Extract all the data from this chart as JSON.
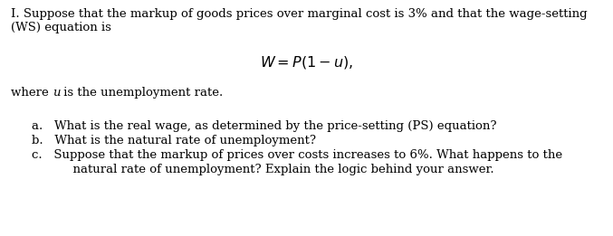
{
  "bg_color": "#ffffff",
  "text_color": "#000000",
  "figsize": [
    6.77,
    2.61
  ],
  "dpi": 100,
  "line1": "I. Suppose that the markup of goods prices over marginal cost is 3% and that the wage-setting",
  "line2": "(WS) equation is",
  "equation": "$\\mathit{W} = \\mathit{P}(1 - \\mathit{u}),$",
  "where_pre": "where ",
  "where_u": "u",
  "where_post": " is the unemployment rate.",
  "item_a": "a.   What is the real wage, as determined by the price-setting (PS) equation?",
  "item_b": "b.   What is the natural rate of unemployment?",
  "item_c1": "c.   Suppose that the markup of prices over costs increases to 6%. What happens to the",
  "item_c2": "      natural rate of unemployment? Explain the logic behind your answer.",
  "font_size": 9.5,
  "font_size_eq": 11.5,
  "lm": 0.018,
  "item_lm": 0.055,
  "item_c2_lm": 0.085
}
